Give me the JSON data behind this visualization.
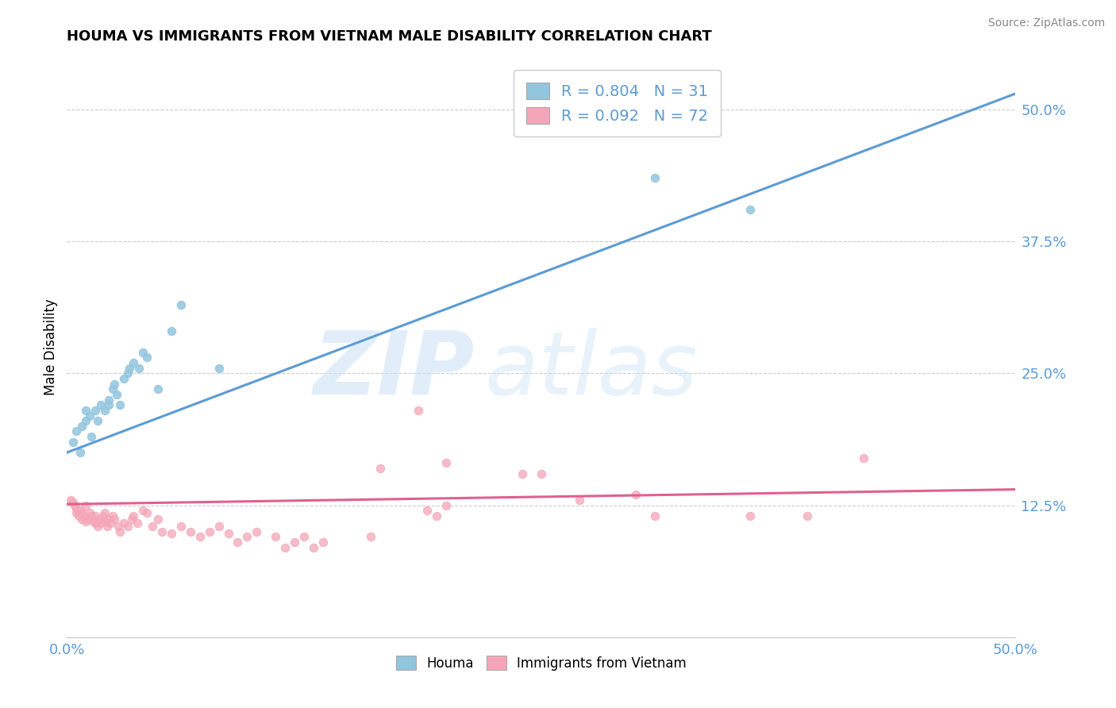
{
  "title": "HOUMA VS IMMIGRANTS FROM VIETNAM MALE DISABILITY CORRELATION CHART",
  "source": "Source: ZipAtlas.com",
  "ylabel": "Male Disability",
  "xlim": [
    0.0,
    0.5
  ],
  "ylim": [
    0.0,
    0.55
  ],
  "yticks": [
    0.125,
    0.25,
    0.375,
    0.5
  ],
  "ytick_labels": [
    "12.5%",
    "25.0%",
    "37.5%",
    "50.0%"
  ],
  "xtick_labels": [
    "0.0%",
    "50.0%"
  ],
  "houma_R": 0.804,
  "houma_N": 31,
  "vietnam_R": 0.092,
  "vietnam_N": 72,
  "houma_color": "#92c5de",
  "vietnam_color": "#f4a6b8",
  "houma_line_color": "#5b9bd5",
  "vietnam_line_color": "#e06090",
  "houma_x": [
    0.003,
    0.005,
    0.007,
    0.008,
    0.01,
    0.01,
    0.012,
    0.013,
    0.015,
    0.016,
    0.018,
    0.02,
    0.022,
    0.022,
    0.024,
    0.025,
    0.026,
    0.028,
    0.03,
    0.032,
    0.033,
    0.035,
    0.038,
    0.04,
    0.042,
    0.048,
    0.055,
    0.06,
    0.08,
    0.31,
    0.36
  ],
  "houma_y": [
    0.185,
    0.195,
    0.175,
    0.2,
    0.205,
    0.215,
    0.21,
    0.19,
    0.215,
    0.205,
    0.22,
    0.215,
    0.225,
    0.22,
    0.235,
    0.24,
    0.23,
    0.22,
    0.245,
    0.25,
    0.255,
    0.26,
    0.255,
    0.27,
    0.265,
    0.235,
    0.29,
    0.315,
    0.255,
    0.435,
    0.405
  ],
  "vietnam_x": [
    0.002,
    0.003,
    0.004,
    0.005,
    0.005,
    0.006,
    0.007,
    0.008,
    0.008,
    0.009,
    0.01,
    0.01,
    0.011,
    0.012,
    0.013,
    0.014,
    0.015,
    0.015,
    0.016,
    0.017,
    0.018,
    0.019,
    0.02,
    0.02,
    0.021,
    0.022,
    0.023,
    0.024,
    0.025,
    0.027,
    0.028,
    0.03,
    0.032,
    0.034,
    0.035,
    0.037,
    0.04,
    0.042,
    0.045,
    0.048,
    0.05,
    0.055,
    0.06,
    0.065,
    0.07,
    0.075,
    0.08,
    0.085,
    0.09,
    0.095,
    0.1,
    0.11,
    0.115,
    0.12,
    0.125,
    0.13,
    0.135,
    0.16,
    0.165,
    0.185,
    0.19,
    0.195,
    0.2,
    0.2,
    0.24,
    0.25,
    0.27,
    0.3,
    0.31,
    0.36,
    0.39,
    0.42
  ],
  "vietnam_y": [
    0.13,
    0.128,
    0.125,
    0.122,
    0.118,
    0.115,
    0.12,
    0.112,
    0.118,
    0.115,
    0.11,
    0.125,
    0.112,
    0.118,
    0.115,
    0.11,
    0.108,
    0.115,
    0.105,
    0.112,
    0.108,
    0.115,
    0.11,
    0.118,
    0.105,
    0.112,
    0.108,
    0.115,
    0.112,
    0.105,
    0.1,
    0.108,
    0.105,
    0.112,
    0.115,
    0.108,
    0.12,
    0.118,
    0.105,
    0.112,
    0.1,
    0.098,
    0.105,
    0.1,
    0.095,
    0.1,
    0.105,
    0.098,
    0.09,
    0.095,
    0.1,
    0.095,
    0.085,
    0.09,
    0.095,
    0.085,
    0.09,
    0.095,
    0.16,
    0.215,
    0.12,
    0.115,
    0.165,
    0.125,
    0.155,
    0.155,
    0.13,
    0.135,
    0.115,
    0.115,
    0.115,
    0.17
  ],
  "houma_line_x0": 0.0,
  "houma_line_y0": 0.175,
  "houma_line_x1": 0.5,
  "houma_line_y1": 0.515,
  "vietnam_line_x0": 0.0,
  "vietnam_line_y0": 0.126,
  "vietnam_line_x1": 0.5,
  "vietnam_line_y1": 0.14
}
